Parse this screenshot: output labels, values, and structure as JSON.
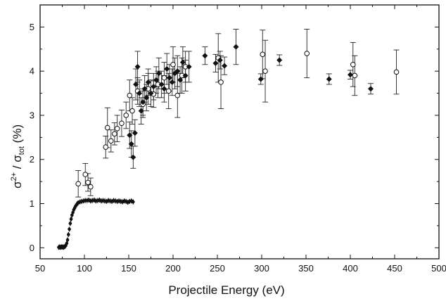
{
  "chart_data": {
    "type": "scatter",
    "xlabel": "Projectile  Energy (eV)",
    "ylabel": {
      "sigma1": "σ",
      "sup1": "2+",
      "slash": " / σ",
      "sub": "tot",
      "unit": " (%)"
    },
    "xlim": [
      50,
      500
    ],
    "ylim": [
      -0.25,
      5.5
    ],
    "x_ticks": [
      50,
      100,
      150,
      200,
      250,
      300,
      350,
      400,
      450,
      500
    ],
    "y_ticks": [
      0,
      1,
      2,
      3,
      4,
      5
    ],
    "grid": false,
    "series": [
      {
        "marker": "open-circle",
        "points": [
          {
            "x": 93,
            "y": 1.45,
            "err": 0.3
          },
          {
            "x": 101,
            "y": 1.66,
            "err": 0.25
          },
          {
            "x": 104,
            "y": 1.48,
            "err": 0.2
          },
          {
            "x": 107,
            "y": 1.38,
            "err": 0.2
          },
          {
            "x": 124,
            "y": 2.28,
            "err": 0.25
          },
          {
            "x": 126,
            "y": 2.72,
            "err": 0.45
          },
          {
            "x": 130,
            "y": 2.42,
            "err": 0.25
          },
          {
            "x": 134,
            "y": 2.58,
            "err": 0.25
          },
          {
            "x": 137,
            "y": 2.7,
            "err": 0.3
          },
          {
            "x": 142,
            "y": 2.82,
            "err": 0.3
          },
          {
            "x": 147,
            "y": 3.0,
            "err": 0.3
          },
          {
            "x": 151,
            "y": 3.45,
            "err": 0.35
          },
          {
            "x": 154,
            "y": 3.1,
            "err": 0.3
          },
          {
            "x": 160,
            "y": 3.55,
            "err": 0.3
          },
          {
            "x": 166,
            "y": 3.25,
            "err": 0.3
          },
          {
            "x": 172,
            "y": 3.6,
            "err": 0.35
          },
          {
            "x": 178,
            "y": 3.48,
            "err": 0.3
          },
          {
            "x": 183,
            "y": 3.7,
            "err": 0.3
          },
          {
            "x": 190,
            "y": 3.85,
            "err": 0.35
          },
          {
            "x": 195,
            "y": 3.55,
            "err": 0.4
          },
          {
            "x": 200,
            "y": 4.15,
            "err": 0.4
          },
          {
            "x": 205,
            "y": 3.45,
            "err": 0.5
          },
          {
            "x": 210,
            "y": 3.9,
            "err": 0.4
          },
          {
            "x": 214,
            "y": 4.1,
            "err": 0.35
          },
          {
            "x": 251,
            "y": 4.3,
            "err": 0.55
          },
          {
            "x": 254,
            "y": 3.75,
            "err": 0.6
          },
          {
            "x": 301,
            "y": 4.38,
            "err": 0.55
          },
          {
            "x": 304,
            "y": 4.0,
            "err": 0.7
          },
          {
            "x": 351,
            "y": 4.4,
            "err": 0.55
          },
          {
            "x": 403,
            "y": 4.15,
            "err": 0.5
          },
          {
            "x": 405,
            "y": 3.9,
            "err": 0.45
          },
          {
            "x": 452,
            "y": 3.98,
            "err": 0.5
          }
        ]
      },
      {
        "marker": "filled-diamond",
        "points": [
          {
            "x": 151,
            "y": 2.55,
            "err": 0.3
          },
          {
            "x": 153,
            "y": 2.35,
            "err": 0.3
          },
          {
            "x": 155,
            "y": 2.05,
            "err": 0.25
          },
          {
            "x": 157,
            "y": 2.6,
            "err": 0.3
          },
          {
            "x": 158,
            "y": 3.7,
            "err": 0.35
          },
          {
            "x": 160,
            "y": 4.1,
            "err": 0.35
          },
          {
            "x": 162,
            "y": 3.5,
            "err": 0.3
          },
          {
            "x": 164,
            "y": 3.1,
            "err": 0.3
          },
          {
            "x": 166,
            "y": 3.3,
            "err": 0.3
          },
          {
            "x": 168,
            "y": 3.6,
            "err": 0.3
          },
          {
            "x": 170,
            "y": 3.4,
            "err": 0.3
          },
          {
            "x": 172,
            "y": 3.75,
            "err": 0.3
          },
          {
            "x": 175,
            "y": 3.5,
            "err": 0.3
          },
          {
            "x": 178,
            "y": 3.65,
            "err": 0.3
          },
          {
            "x": 181,
            "y": 3.8,
            "err": 0.3
          },
          {
            "x": 184,
            "y": 3.95,
            "err": 0.35
          },
          {
            "x": 187,
            "y": 3.7,
            "err": 0.3
          },
          {
            "x": 190,
            "y": 3.6,
            "err": 0.3
          },
          {
            "x": 193,
            "y": 4.05,
            "err": 0.35
          },
          {
            "x": 196,
            "y": 3.85,
            "err": 0.3
          },
          {
            "x": 199,
            "y": 3.75,
            "err": 0.3
          },
          {
            "x": 202,
            "y": 3.95,
            "err": 0.35
          },
          {
            "x": 205,
            "y": 4.0,
            "err": 0.35
          },
          {
            "x": 208,
            "y": 3.8,
            "err": 0.3
          },
          {
            "x": 211,
            "y": 4.2,
            "err": 0.35
          },
          {
            "x": 214,
            "y": 3.9,
            "err": 0.35
          },
          {
            "x": 218,
            "y": 4.1,
            "err": 0.35
          },
          {
            "x": 236,
            "y": 4.35,
            "err": 0.2
          },
          {
            "x": 248,
            "y": 4.18,
            "err": 0.2
          },
          {
            "x": 253,
            "y": 4.25,
            "err": 0.2
          },
          {
            "x": 258,
            "y": 4.12,
            "err": 0.2
          },
          {
            "x": 271,
            "y": 4.55,
            "err": 0.4
          },
          {
            "x": 299,
            "y": 3.82,
            "err": 0.12
          },
          {
            "x": 320,
            "y": 4.25,
            "err": 0.12
          },
          {
            "x": 376,
            "y": 3.82,
            "err": 0.12
          },
          {
            "x": 400,
            "y": 3.92,
            "err": 0.1
          },
          {
            "x": 423,
            "y": 3.6,
            "err": 0.12
          }
        ]
      },
      {
        "marker": "filled-small",
        "points": [
          {
            "x": 71,
            "y": 0.01
          },
          {
            "x": 72,
            "y": 0.02
          },
          {
            "x": 73,
            "y": 0.01
          },
          {
            "x": 74,
            "y": 0.02
          },
          {
            "x": 75,
            "y": 0.02
          },
          {
            "x": 76,
            "y": 0.01
          },
          {
            "x": 77,
            "y": 0.02
          },
          {
            "x": 78,
            "y": 0.03
          },
          {
            "x": 79,
            "y": 0.05
          },
          {
            "x": 80,
            "y": 0.1
          },
          {
            "x": 81,
            "y": 0.18
          },
          {
            "x": 82,
            "y": 0.3
          },
          {
            "x": 83,
            "y": 0.42
          },
          {
            "x": 84,
            "y": 0.55
          },
          {
            "x": 85,
            "y": 0.65
          },
          {
            "x": 86,
            "y": 0.74
          },
          {
            "x": 87,
            "y": 0.8
          },
          {
            "x": 88,
            "y": 0.86
          },
          {
            "x": 89,
            "y": 0.9
          },
          {
            "x": 90,
            "y": 0.94
          },
          {
            "x": 91,
            "y": 0.97
          },
          {
            "x": 92,
            "y": 1.0
          },
          {
            "x": 93,
            "y": 1.02
          },
          {
            "x": 95,
            "y": 1.04
          },
          {
            "x": 97,
            "y": 1.05
          },
          {
            "x": 99,
            "y": 1.06
          },
          {
            "x": 101,
            "y": 1.07
          },
          {
            "x": 103,
            "y": 1.07
          },
          {
            "x": 105,
            "y": 1.08
          },
          {
            "x": 107,
            "y": 1.06
          },
          {
            "x": 109,
            "y": 1.07
          },
          {
            "x": 111,
            "y": 1.08
          },
          {
            "x": 113,
            "y": 1.06
          },
          {
            "x": 115,
            "y": 1.07
          },
          {
            "x": 117,
            "y": 1.08
          },
          {
            "x": 119,
            "y": 1.06
          },
          {
            "x": 121,
            "y": 1.07
          },
          {
            "x": 123,
            "y": 1.06
          },
          {
            "x": 125,
            "y": 1.05
          },
          {
            "x": 127,
            "y": 1.07
          },
          {
            "x": 129,
            "y": 1.06
          },
          {
            "x": 131,
            "y": 1.05
          },
          {
            "x": 133,
            "y": 1.07
          },
          {
            "x": 135,
            "y": 1.06
          },
          {
            "x": 137,
            "y": 1.05
          },
          {
            "x": 139,
            "y": 1.06
          },
          {
            "x": 141,
            "y": 1.05
          },
          {
            "x": 143,
            "y": 1.04
          },
          {
            "x": 145,
            "y": 1.06
          },
          {
            "x": 147,
            "y": 1.05
          },
          {
            "x": 149,
            "y": 1.03
          },
          {
            "x": 151,
            "y": 1.05
          },
          {
            "x": 153,
            "y": 1.06
          },
          {
            "x": 155,
            "y": 1.04
          }
        ]
      }
    ]
  }
}
